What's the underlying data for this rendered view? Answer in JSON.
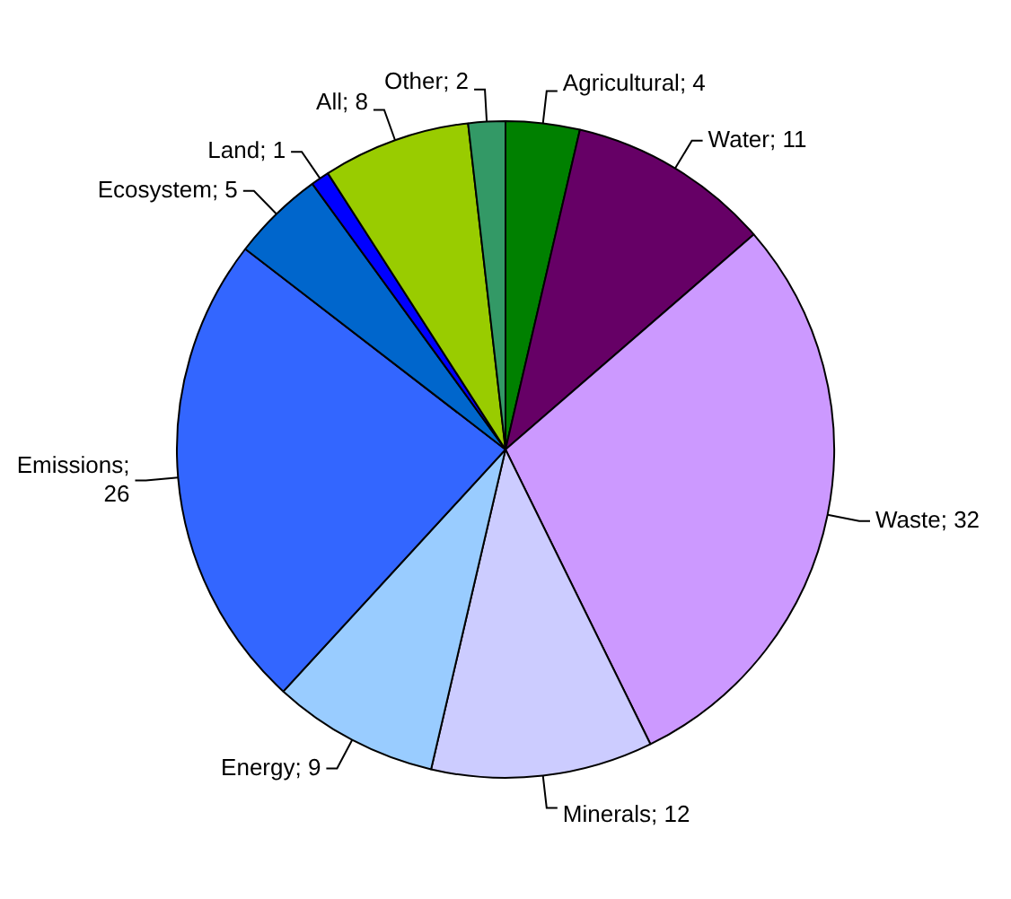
{
  "chart_data": {
    "type": "pie",
    "categories": [
      "Agricultural",
      "Water",
      "Waste",
      "Minerals",
      "Energy",
      "Emissions",
      "Ecosystem",
      "Land",
      "All",
      "Other"
    ],
    "values": [
      4,
      11,
      32,
      12,
      9,
      26,
      5,
      1,
      8,
      2
    ],
    "value_labels": [
      "; 4",
      "; 11",
      "; 32",
      "; 12",
      "; 9",
      "; 26",
      "; 5",
      "; 1",
      "; 8",
      "; 2"
    ],
    "colors": [
      "#008000",
      "#660066",
      "#cc99ff",
      "#ccccff",
      "#99ccff",
      "#3366ff",
      "#0066cc",
      "#0000ff",
      "#99cc00",
      "#339966"
    ],
    "legend": false
  }
}
